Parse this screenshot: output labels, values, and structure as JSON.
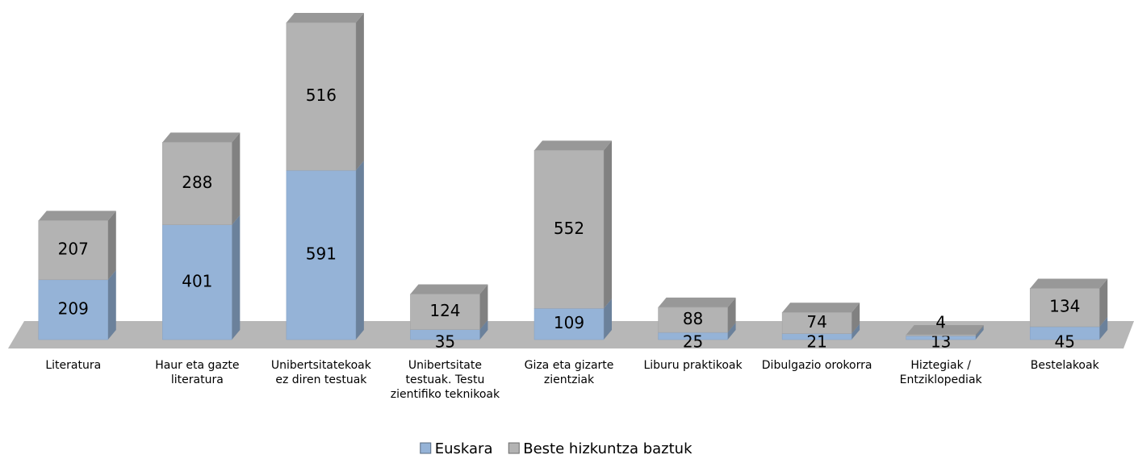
{
  "chart_data": {
    "type": "bar3d_stacked",
    "categories": [
      "Literatura",
      "Haur eta gazte literatura",
      "Unibertsitatekoak ez diren testuak",
      "Unibertsitate testuak. Testu zientifiko teknikoak",
      "Giza eta gizarte zientziak",
      "Liburu praktikoak",
      "Dibulgazio orokorra",
      "Hiztegiak / Entziklopediak",
      "Bestelakoak"
    ],
    "series": [
      {
        "name": "Euskara",
        "color": "#95b3d7",
        "values": [
          209,
          401,
          591,
          35,
          109,
          25,
          21,
          13,
          45
        ]
      },
      {
        "name": "Beste hizkuntza baztuk",
        "color": "#b3b3b3",
        "values": [
          207,
          288,
          516,
          124,
          552,
          88,
          74,
          4,
          134
        ]
      }
    ],
    "legend": "bottom"
  }
}
